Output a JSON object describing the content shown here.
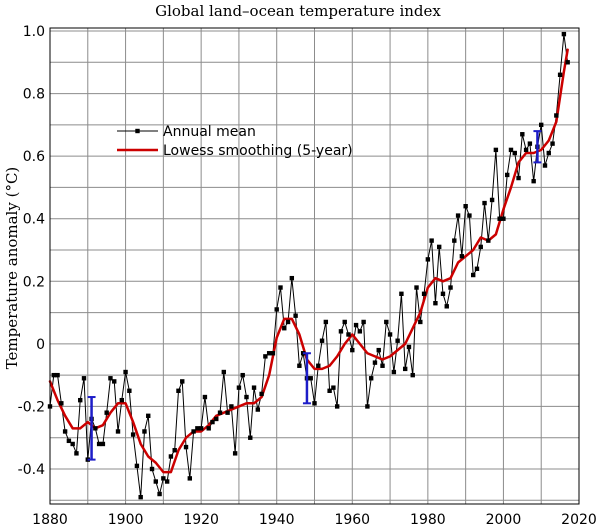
{
  "chart_data": {
    "type": "line",
    "title": "Global land–ocean temperature index",
    "xlabel": "",
    "ylabel": "Temperature anomaly (°C)",
    "xlim": [
      1880,
      2020
    ],
    "ylim": [
      -0.5,
      1.0
    ],
    "x_ticks": [
      1880,
      1900,
      1920,
      1940,
      1960,
      1980,
      2000,
      2020
    ],
    "y_ticks": [
      -0.4,
      -0.2,
      0,
      0.2,
      0.4,
      0.6,
      0.8,
      1.0
    ],
    "y_tick_labels": [
      "-0.4",
      "-0.2",
      "0",
      "0.2",
      "0.4",
      "0.6",
      "0.8",
      "1.0"
    ],
    "grid": true,
    "legend_position": "upper-left",
    "series": [
      {
        "name": "Annual mean",
        "color": "#000000",
        "marker": "square",
        "x": [
          1880,
          1881,
          1882,
          1883,
          1884,
          1885,
          1886,
          1887,
          1888,
          1889,
          1890,
          1891,
          1892,
          1893,
          1894,
          1895,
          1896,
          1897,
          1898,
          1899,
          1900,
          1901,
          1902,
          1903,
          1904,
          1905,
          1906,
          1907,
          1908,
          1909,
          1910,
          1911,
          1912,
          1913,
          1914,
          1915,
          1916,
          1917,
          1918,
          1919,
          1920,
          1921,
          1922,
          1923,
          1924,
          1925,
          1926,
          1927,
          1928,
          1929,
          1930,
          1931,
          1932,
          1933,
          1934,
          1935,
          1936,
          1937,
          1938,
          1939,
          1940,
          1941,
          1942,
          1943,
          1944,
          1945,
          1946,
          1947,
          1948,
          1949,
          1950,
          1951,
          1952,
          1953,
          1954,
          1955,
          1956,
          1957,
          1958,
          1959,
          1960,
          1961,
          1962,
          1963,
          1964,
          1965,
          1966,
          1967,
          1968,
          1969,
          1970,
          1971,
          1972,
          1973,
          1974,
          1975,
          1976,
          1977,
          1978,
          1979,
          1980,
          1981,
          1982,
          1983,
          1984,
          1985,
          1986,
          1987,
          1988,
          1989,
          1990,
          1991,
          1992,
          1993,
          1994,
          1995,
          1996,
          1997,
          1998,
          1999,
          2000,
          2001,
          2002,
          2003,
          2004,
          2005,
          2006,
          2007,
          2008,
          2009,
          2010,
          2011,
          2012,
          2013,
          2014,
          2015,
          2016,
          2017
        ],
        "values": [
          -0.2,
          -0.1,
          -0.1,
          -0.19,
          -0.28,
          -0.31,
          -0.32,
          -0.35,
          -0.18,
          -0.11,
          -0.37,
          -0.24,
          -0.27,
          -0.32,
          -0.32,
          -0.22,
          -0.11,
          -0.12,
          -0.28,
          -0.18,
          -0.09,
          -0.15,
          -0.29,
          -0.39,
          -0.49,
          -0.28,
          -0.23,
          -0.4,
          -0.44,
          -0.48,
          -0.43,
          -0.44,
          -0.36,
          -0.34,
          -0.15,
          -0.12,
          -0.33,
          -0.43,
          -0.28,
          -0.27,
          -0.27,
          -0.17,
          -0.27,
          -0.25,
          -0.24,
          -0.22,
          -0.09,
          -0.22,
          -0.2,
          -0.35,
          -0.14,
          -0.1,
          -0.17,
          -0.3,
          -0.14,
          -0.21,
          -0.16,
          -0.04,
          -0.03,
          -0.03,
          0.11,
          0.18,
          0.05,
          0.07,
          0.21,
          0.09,
          -0.07,
          -0.03,
          -0.11,
          -0.11,
          -0.19,
          -0.07,
          0.01,
          0.07,
          -0.15,
          -0.14,
          -0.2,
          0.04,
          0.07,
          0.03,
          -0.02,
          0.06,
          0.04,
          0.07,
          -0.2,
          -0.11,
          -0.06,
          -0.02,
          -0.07,
          0.07,
          0.03,
          -0.09,
          0.01,
          0.16,
          -0.08,
          -0.01,
          -0.1,
          0.18,
          0.07,
          0.16,
          0.27,
          0.33,
          0.13,
          0.31,
          0.16,
          0.12,
          0.18,
          0.33,
          0.41,
          0.28,
          0.44,
          0.41,
          0.22,
          0.24,
          0.31,
          0.45,
          0.33,
          0.46,
          0.62,
          0.4,
          0.4,
          0.54,
          0.62,
          0.61,
          0.53,
          0.67,
          0.62,
          0.64,
          0.52,
          0.63,
          0.7,
          0.57,
          0.61,
          0.64,
          0.73,
          0.86,
          0.99,
          0.9
        ]
      },
      {
        "name": "Lowess smoothing (5-year)",
        "color": "#cc0000",
        "x": [
          1880,
          1882,
          1884,
          1886,
          1888,
          1890,
          1892,
          1894,
          1896,
          1898,
          1900,
          1902,
          1904,
          1906,
          1908,
          1910,
          1912,
          1914,
          1916,
          1918,
          1920,
          1922,
          1924,
          1926,
          1928,
          1930,
          1932,
          1934,
          1936,
          1938,
          1940,
          1942,
          1944,
          1946,
          1948,
          1950,
          1952,
          1954,
          1956,
          1958,
          1960,
          1962,
          1964,
          1966,
          1968,
          1970,
          1972,
          1974,
          1976,
          1978,
          1980,
          1982,
          1984,
          1986,
          1988,
          1990,
          1992,
          1994,
          1996,
          1998,
          2000,
          2002,
          2004,
          2006,
          2008,
          2010,
          2012,
          2014,
          2016,
          2017
        ],
        "values": [
          -0.12,
          -0.18,
          -0.23,
          -0.27,
          -0.27,
          -0.25,
          -0.27,
          -0.26,
          -0.22,
          -0.19,
          -0.19,
          -0.25,
          -0.32,
          -0.36,
          -0.38,
          -0.41,
          -0.41,
          -0.34,
          -0.3,
          -0.28,
          -0.28,
          -0.26,
          -0.23,
          -0.22,
          -0.21,
          -0.2,
          -0.19,
          -0.19,
          -0.17,
          -0.1,
          0.02,
          0.08,
          0.08,
          0.03,
          -0.05,
          -0.08,
          -0.08,
          -0.07,
          -0.04,
          0.0,
          0.03,
          0.0,
          -0.03,
          -0.04,
          -0.05,
          -0.04,
          -0.02,
          0.0,
          0.05,
          0.1,
          0.18,
          0.21,
          0.2,
          0.21,
          0.26,
          0.28,
          0.3,
          0.34,
          0.33,
          0.35,
          0.43,
          0.5,
          0.58,
          0.61,
          0.61,
          0.62,
          0.65,
          0.71,
          0.87,
          0.94
        ]
      }
    ],
    "error_bars": [
      {
        "x": 1891,
        "low": -0.37,
        "high": -0.17
      },
      {
        "x": 1948,
        "low": -0.19,
        "high": -0.03
      },
      {
        "x": 2009,
        "low": 0.58,
        "high": 0.68
      }
    ],
    "error_bar_color": "#1d1dc8"
  }
}
